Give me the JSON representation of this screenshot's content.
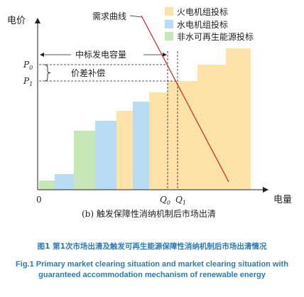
{
  "diagram": {
    "y_axis_label": "电价",
    "x_axis_label": "电量",
    "origin_label": "0",
    "p0_label": "P",
    "p0_sub": "0",
    "p1_label": "P",
    "p1_sub": "1",
    "q0_label": "Q",
    "q0_sub": "0",
    "q1_label": "Q",
    "q1_sub": "1",
    "demand_curve_label": "需求曲线",
    "capacity_label": "中标发电容量",
    "price_gap_label": "价差补偿",
    "subfigure_label": "(b) 触发保障性消纳机制后市场出清",
    "legend": [
      {
        "label": "火电机组投标",
        "color": "#fde3a7"
      },
      {
        "label": "水电机组投标",
        "color": "#b8dcf4"
      },
      {
        "label": "非水可再生能源投标",
        "color": "#c6e8b6"
      }
    ],
    "bid_blocks": [
      {
        "type": "renewable",
        "color": "#c6e8b6"
      },
      {
        "type": "hydro",
        "color": "#b8dcf4"
      },
      {
        "type": "renewable",
        "color": "#c6e8b6"
      },
      {
        "type": "hydro",
        "color": "#b8dcf4"
      },
      {
        "type": "thermal",
        "color": "#fde3a7"
      },
      {
        "type": "hydro",
        "color": "#b8dcf4"
      },
      {
        "type": "thermal",
        "color": "#fde3a7"
      },
      {
        "type": "thermal",
        "color": "#fde3a7"
      },
      {
        "type": "thermal",
        "color": "#fde3a7"
      },
      {
        "type": "thermal",
        "color": "#fde3a7"
      }
    ],
    "demand_curve_color": "#d0202a"
  },
  "caption": {
    "cn": "图1 第1次市场出清及触发可再生能源保障性消纳机制后市场出清情况",
    "en": "Fig.1 Primary market clearing situation and market clearing situation with guaranteed accommodation mechanism of renewable energy"
  }
}
